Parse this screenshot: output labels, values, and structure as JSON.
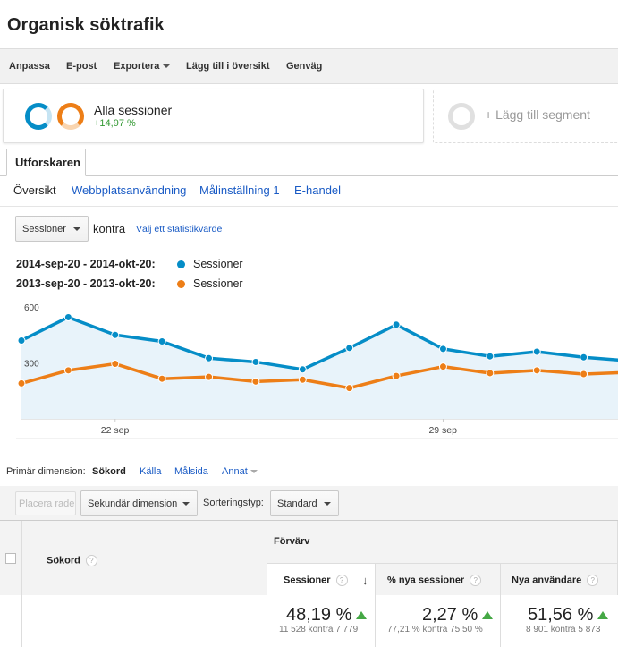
{
  "page": {
    "title": "Organisk söktrafik"
  },
  "toolbar": {
    "items": [
      "Anpassa",
      "E-post",
      "Exportera",
      "Lägg till i översikt",
      "Genväg"
    ]
  },
  "segments": {
    "active": {
      "name": "Alla sessioner",
      "change": "+14,97 %"
    },
    "add_label": "+ Lägg till segment",
    "colors": {
      "primary": "#058dc7",
      "compare": "#ed7e17"
    }
  },
  "tabs": {
    "active": "Utforskaren"
  },
  "subnav": [
    "Översikt",
    "Webbplatsanvändning",
    "Målinställning 1",
    "E-handel"
  ],
  "metric_picker": {
    "selected": "Sessioner",
    "versus": "kontra",
    "pick_label": "Välj ett statistikvärde"
  },
  "legend": [
    {
      "range": "2014-sep-20 - 2014-okt-20:",
      "series": "Sessioner",
      "color": "#058dc7"
    },
    {
      "range": "2013-sep-20 - 2013-okt-20:",
      "series": "Sessioner",
      "color": "#ed7e17"
    }
  ],
  "chart_data": {
    "type": "line",
    "ylim": [
      0,
      600
    ],
    "yticks": [
      "600",
      "300"
    ],
    "x_tick_labels": [
      {
        "label": "22 sep",
        "index": 2
      },
      {
        "label": "29 sep",
        "index": 9
      }
    ],
    "series": [
      {
        "name": "Sessioner",
        "color": "#058dc7",
        "values": [
          420,
          545,
          450,
          415,
          325,
          305,
          265,
          380,
          505,
          375,
          335,
          360,
          330,
          310
        ]
      },
      {
        "name": "Sessioner",
        "color": "#ed7e17",
        "values": [
          190,
          260,
          295,
          215,
          225,
          200,
          210,
          165,
          230,
          280,
          245,
          260,
          240,
          250
        ]
      }
    ]
  },
  "dimensions": {
    "label": "Primär dimension:",
    "items": [
      "Sökord",
      "Källa",
      "Målsida",
      "Annat"
    ],
    "active": "Sökord"
  },
  "controls": {
    "plot_rows": "Placera rader",
    "secondary": "Sekundär dimension",
    "sort_label": "Sorteringstyp:",
    "sort_value": "Standard"
  },
  "table": {
    "first_header": "Sökord",
    "group_header": "Förvärv",
    "help": "?",
    "columns": [
      {
        "label": "Sessioner",
        "value": "48,19 %",
        "detail": "11 528 kontra 7 779"
      },
      {
        "label": "% nya sessioner",
        "value": "2,27 %",
        "detail": "77,21 % kontra 75,50 %"
      },
      {
        "label": "Nya användare",
        "value": "51,56 %",
        "detail": "8 901 kontra 5 873"
      }
    ]
  }
}
